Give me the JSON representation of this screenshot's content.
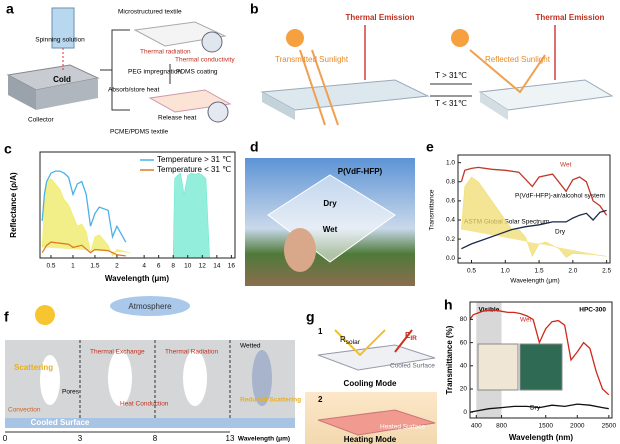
{
  "panels": {
    "a": {
      "label": "a",
      "spinning_solution": "Spinning solution",
      "cold": "Cold",
      "collector": "Collector",
      "microstructured_textile": "Microstructured textile",
      "thermal_radiation": "Thermal radiation",
      "thermal_conductivity": "Thermal conductivity",
      "peg_impregnation": "PEG impregnation",
      "pdms_coating": "PDMS coating",
      "absorb_store_heat": "Absorb/store heat",
      "release_heat": "Release heat",
      "pcme_pdms_textile": "PCME/PDMS textile"
    },
    "b": {
      "label": "b",
      "thermal_emission_left": "Thermal Emission",
      "thermal_emission_right": "Thermal Emission",
      "transmitted_sunlight": "Transmitted Sunlight",
      "reflected_sunlight": "Reflected Sunlight",
      "t_above": "T > 31℃",
      "t_below": "T < 31℃"
    },
    "d": {
      "label": "d",
      "material": "P(VdF-HFP)",
      "dry": "Dry",
      "wet": "Wet"
    },
    "f": {
      "label": "f",
      "atmosphere": "Atmosphere",
      "scattering": "Scattering",
      "thermal_exchange": "Thermal Exchange",
      "thermal_radiation": "Thermal Radiation",
      "wetted": "Wetted",
      "pores": "Pores",
      "convection": "Convection",
      "heat_conduction": "Heat Conduction",
      "reduced_scattering": "Reduced Scattering",
      "cooled_surface": "Cooled Surface",
      "axis_ticks": [
        0,
        3,
        8,
        13
      ],
      "axis_label": "Wavelength (μm)"
    },
    "g": {
      "label": "g",
      "step1": "1",
      "r_symbol": "R",
      "r_sub": "solar",
      "e_symbol": "E",
      "e_sub": "IR",
      "cooled_surface": "Cooled Surface",
      "cooling_mode": "Cooling Mode",
      "step2": "2",
      "heated_surface": "Heated Surface",
      "heating_mode": "Heating Mode"
    }
  },
  "chart_data": [
    {
      "type": "line",
      "label": "c",
      "xlabel": "Wavelength (μm)",
      "ylabel": "Reflectance (ρ/A)",
      "legend": "upper right",
      "x_segments": [
        {
          "xlim": [
            0.25,
            2.4
          ],
          "xticks": [
            0.5,
            1,
            1.5,
            2
          ]
        },
        {
          "xlim": [
            3.5,
            16.5
          ],
          "xticks": [
            4,
            6,
            8,
            10,
            12,
            14,
            16
          ]
        }
      ],
      "ylim": [
        0,
        1
      ],
      "series": [
        {
          "color": "#eeea60",
          "fill": true,
          "x": [
            0.3,
            0.35,
            0.4,
            0.5,
            0.6,
            0.7,
            0.8,
            0.9,
            1.0,
            1.1,
            1.2,
            1.3,
            1.4,
            1.5,
            1.6,
            1.8,
            1.9,
            2.0,
            2.3
          ],
          "values": [
            0.1,
            0.5,
            0.72,
            0.75,
            0.7,
            0.65,
            0.55,
            0.5,
            0.4,
            0.3,
            0.32,
            0.25,
            0.05,
            0.2,
            0.22,
            0.12,
            0.02,
            0.08,
            0.05
          ]
        },
        {
          "color": "#6fe8d0",
          "fill": true,
          "x": [
            8,
            8.2,
            8.6,
            9,
            9.5,
            10,
            10.5,
            11,
            11.5,
            12,
            12.5,
            13
          ],
          "values": [
            0,
            0.75,
            0.78,
            0.8,
            0.6,
            0.78,
            0.8,
            0.79,
            0.8,
            0.78,
            0.75,
            0
          ]
        },
        {
          "name": "Temperature > 31 ℃",
          "color": "#4ab0e8",
          "x": [
            0.3,
            0.35,
            0.4,
            0.5,
            0.6,
            0.7,
            0.8,
            0.9,
            1.0,
            1.1,
            1.2,
            1.3,
            1.4,
            1.5,
            1.6,
            1.8,
            1.9,
            2.0,
            2.2
          ],
          "values": [
            0.35,
            0.6,
            0.72,
            0.8,
            0.82,
            0.82,
            0.8,
            0.76,
            0.6,
            0.7,
            0.72,
            0.6,
            0.3,
            0.42,
            0.48,
            0.45,
            0.2,
            0.3,
            0.15
          ]
        },
        {
          "name": "Temperature < 31 ℃",
          "color": "#e07b20",
          "x": [
            0.3,
            0.4,
            0.5,
            0.7,
            0.9,
            1.0,
            1.2,
            1.4,
            1.5,
            1.8,
            2.0,
            2.2
          ],
          "values": [
            0.05,
            0.12,
            0.15,
            0.14,
            0.13,
            0.1,
            0.12,
            0.05,
            0.08,
            0.07,
            0.03,
            0.02
          ]
        }
      ]
    },
    {
      "type": "line",
      "label": "e",
      "xlabel": "Wavelength (μm)",
      "ylabel": "Transmittance",
      "annotation": "P(VdF-HFP)-air/alcohol system",
      "xlim": [
        0.3,
        2.55
      ],
      "xticks": [
        0.5,
        {
          "value": 1,
          "label": "1.0"
        },
        1.5,
        {
          "value": 2,
          "label": "2.0"
        },
        2.5
      ],
      "ylim": [
        -0.05,
        1.08
      ],
      "yticks": [
        {
          "value": 0,
          "label": "0.0"
        },
        0.2,
        0.4,
        0.6,
        0.8,
        {
          "value": 1,
          "label": "1.0"
        }
      ],
      "series": [
        {
          "name": "ASTM Global Solar Spectrum",
          "color": "#f0dc70",
          "fill": true,
          "x": [
            0.35,
            0.4,
            0.5,
            0.6,
            0.7,
            0.8,
            0.9,
            1.0,
            1.1,
            1.2,
            1.3,
            1.4,
            1.5,
            1.6,
            1.8,
            1.9,
            2.0,
            2.3,
            2.5
          ],
          "values": [
            0.3,
            0.75,
            0.85,
            0.8,
            0.7,
            0.6,
            0.5,
            0.4,
            0.3,
            0.3,
            0.22,
            0.02,
            0.15,
            0.17,
            0.1,
            0.01,
            0.05,
            0.04,
            0.02
          ]
        },
        {
          "name": "Wet",
          "color": "#c0392b",
          "x": [
            0.35,
            0.4,
            0.5,
            0.6,
            0.8,
            1.0,
            1.2,
            1.4,
            1.5,
            1.7,
            1.9,
            2.0,
            2.1,
            2.2,
            2.3,
            2.4,
            2.5
          ],
          "values": [
            0.8,
            0.92,
            0.94,
            0.95,
            0.93,
            0.92,
            0.9,
            0.75,
            0.85,
            0.88,
            0.7,
            0.82,
            0.85,
            0.8,
            0.6,
            0.55,
            0.45
          ]
        },
        {
          "name": "Dry",
          "color": "#1a2a4a",
          "x": [
            0.35,
            0.5,
            0.7,
            0.9,
            1.1,
            1.3,
            1.5,
            1.7,
            1.9,
            2.0,
            2.1,
            2.2,
            2.3,
            2.4,
            2.5
          ],
          "values": [
            0.1,
            0.15,
            0.2,
            0.25,
            0.3,
            0.33,
            0.35,
            0.38,
            0.38,
            0.42,
            0.45,
            0.47,
            0.4,
            0.48,
            0.5
          ]
        }
      ]
    },
    {
      "type": "line",
      "label": "h",
      "title": "HPC-300",
      "xlabel": "Wavelength (nm)",
      "ylabel": "Transmittance (%)",
      "xlim": [
        300,
        2550
      ],
      "xticks": [
        400,
        800,
        1500,
        2000,
        2500
      ],
      "ylim": [
        -5,
        95
      ],
      "yticks": [
        0,
        20,
        40,
        60,
        80
      ],
      "highlight": [
        400,
        800
      ],
      "highlight_label": "Visible",
      "series": [
        {
          "name": "Wet",
          "color": "#d0281e",
          "x": [
            300,
            350,
            400,
            500,
            600,
            700,
            800,
            900,
            1000,
            1100,
            1200,
            1300,
            1400,
            1500,
            1600,
            1700,
            1800,
            1900,
            2000,
            2100,
            2200,
            2300,
            2400,
            2500
          ],
          "values": [
            80,
            84,
            85,
            87,
            88,
            88,
            87,
            86,
            86,
            85,
            83,
            80,
            60,
            72,
            78,
            79,
            75,
            45,
            52,
            60,
            55,
            35,
            20,
            15
          ]
        },
        {
          "name": "Dry",
          "color": "#111111",
          "x": [
            300,
            400,
            600,
            800,
            1000,
            1200,
            1400,
            1600,
            1800,
            2000,
            2200,
            2400,
            2500
          ],
          "values": [
            0,
            1,
            3,
            4,
            5,
            5,
            4,
            6,
            5,
            7,
            6,
            4,
            3
          ]
        }
      ]
    }
  ]
}
